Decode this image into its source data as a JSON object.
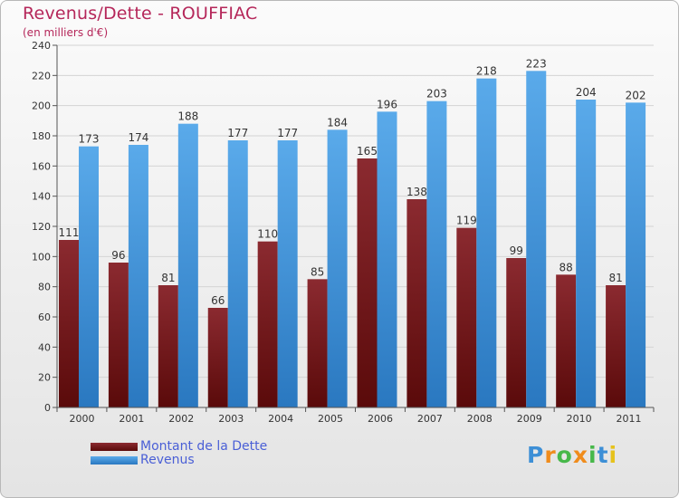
{
  "title": "Revenus/Dette - ROUFFIAC",
  "subtitle": "(en milliers d'€)",
  "brand": {
    "letters": [
      "P",
      "r",
      "o",
      "x",
      "i",
      "t",
      "i"
    ],
    "colors": [
      "#3d8fd6",
      "#f08c1c",
      "#47b84a",
      "#f08c1c",
      "#47b84a",
      "#3d8fd6",
      "#e6c21c"
    ]
  },
  "colors": {
    "dette_top": "#8b2a30",
    "dette_bottom": "#5a0a0a",
    "revenus_top": "#5aaaea",
    "revenus_bottom": "#2a78c0",
    "title": "#b5275a",
    "legend_text": "#4a5fd6"
  },
  "chart_data": {
    "type": "bar",
    "categories": [
      "2000",
      "2001",
      "2002",
      "2003",
      "2004",
      "2005",
      "2006",
      "2007",
      "2008",
      "2009",
      "2010",
      "2011"
    ],
    "series": [
      {
        "name": "Montant de la Dette",
        "values": [
          111,
          96,
          81,
          66,
          110,
          85,
          165,
          138,
          119,
          99,
          88,
          81
        ]
      },
      {
        "name": "Revenus",
        "values": [
          173,
          174,
          188,
          177,
          177,
          184,
          196,
          203,
          218,
          223,
          204,
          202
        ]
      }
    ],
    "yticks": [
      0,
      20,
      40,
      60,
      80,
      100,
      120,
      140,
      160,
      180,
      200,
      220,
      240
    ],
    "ylim": [
      0,
      240
    ],
    "grid": true,
    "legend_position": "bottom-left"
  }
}
